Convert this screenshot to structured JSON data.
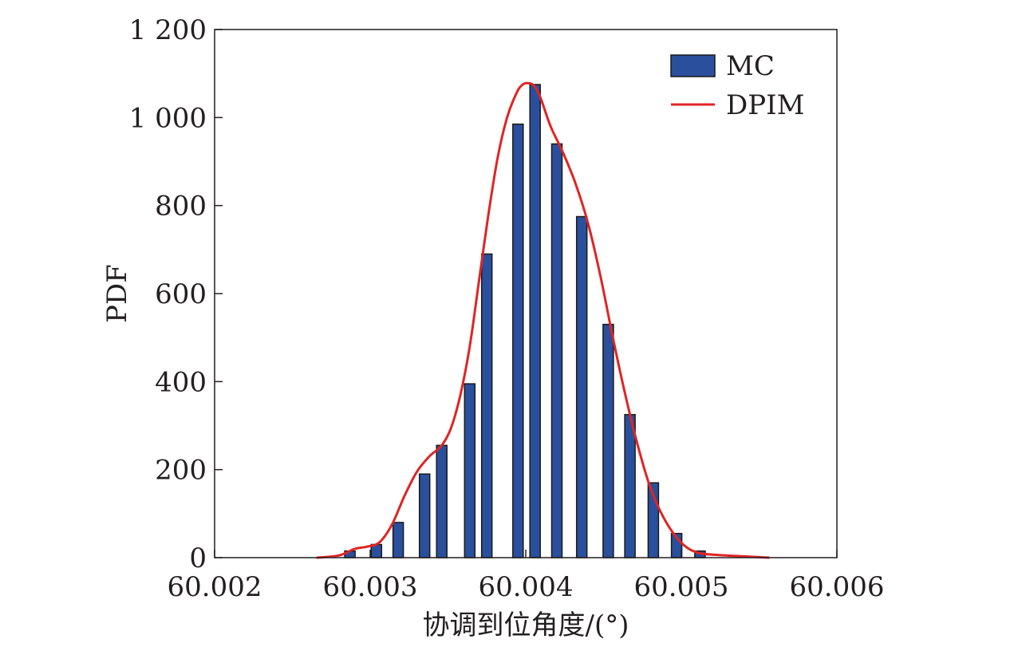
{
  "chart_data": {
    "type": "bar",
    "title": "",
    "xlabel": "协调到位角度/(°)",
    "ylabel": "PDF",
    "xlim": [
      60.002,
      60.006
    ],
    "ylim": [
      0,
      1200
    ],
    "x_ticks": [
      60.002,
      60.003,
      60.004,
      60.005,
      60.006
    ],
    "x_tick_labels": [
      "60.002",
      "60.003",
      "60.004",
      "60.005",
      "60.006"
    ],
    "y_ticks": [
      0,
      200,
      400,
      600,
      800,
      1000,
      1200
    ],
    "y_tick_labels": [
      "0",
      "200",
      "400",
      "600",
      "800",
      "1 000",
      "1 200"
    ],
    "grid": false,
    "legend_position": "top-right",
    "colors": {
      "bar_fill": "#2a4f9c",
      "bar_edge": "#1a1a1a",
      "line": "#e02424",
      "axis": "#231f20"
    },
    "series": [
      {
        "name": "MC",
        "type": "bar",
        "x": [
          60.00287,
          60.00304,
          60.00318,
          60.00335,
          60.00346,
          60.00364,
          60.00375,
          60.00395,
          60.00406,
          60.0042,
          60.00436,
          60.00453,
          60.00467,
          60.00482,
          60.00497,
          60.00512
        ],
        "values": [
          15,
          30,
          80,
          190,
          255,
          395,
          690,
          985,
          1075,
          940,
          775,
          530,
          325,
          170,
          55,
          15
        ]
      },
      {
        "name": "DPIM",
        "type": "line",
        "x": [
          60.00266,
          60.0028,
          60.0029,
          60.00298,
          60.00306,
          60.00314,
          60.00322,
          60.0033,
          60.00338,
          60.00346,
          60.00352,
          60.00358,
          60.00364,
          60.0037,
          60.00376,
          60.00382,
          60.00388,
          60.00394,
          60.00398,
          60.00402,
          60.00406,
          60.0041,
          60.00416,
          60.00424,
          60.00432,
          60.0044,
          60.00448,
          60.00456,
          60.00464,
          60.00472,
          60.0048,
          60.00488,
          60.00496,
          60.00504,
          60.00512,
          60.00524,
          60.0054,
          60.00556
        ],
        "values": [
          0,
          5,
          20,
          25,
          35,
          75,
          140,
          195,
          230,
          255,
          295,
          370,
          480,
          630,
          780,
          910,
          1000,
          1055,
          1075,
          1078,
          1070,
          1040,
          980,
          920,
          850,
          760,
          640,
          500,
          370,
          255,
          160,
          95,
          50,
          22,
          10,
          6,
          3,
          0
        ]
      }
    ]
  }
}
